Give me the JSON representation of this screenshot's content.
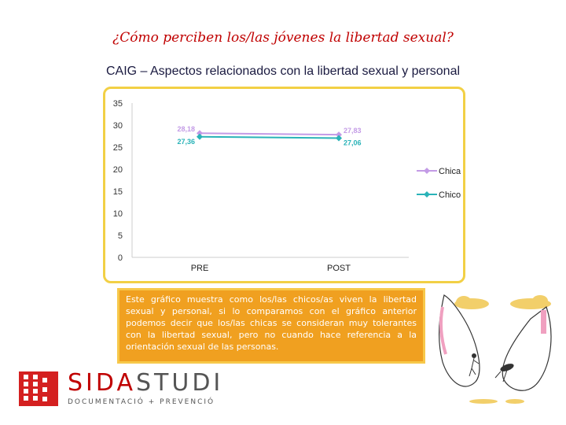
{
  "title": "¿Cómo perciben los/las jóvenes la libertad sexual?",
  "subtitle": "CAIG – Aspectos relacionados con la libertad sexual y personal",
  "description": "Este gráfico muestra como los/las chicos/as viven la libertad sexual y personal, si lo comparamos con el gráfico anterior podemos decir que los/las chicas se consideran muy tolerantes con la libertad sexual, pero no cuando hace referencia a la orientación sexual de las personas.",
  "logo": {
    "brand_part1": "SIDA",
    "brand_part2": "STUDI",
    "tagline": "DOCUMENTACIÓ + PREVENCIÓ"
  },
  "colors": {
    "title": "#c00000",
    "chica": "#c39be6",
    "chico": "#2ab3b8",
    "frame": "#f2d045",
    "desc_bg": "#f0a020"
  },
  "chart_data": {
    "type": "line",
    "categories": [
      "PRE",
      "POST"
    ],
    "series": [
      {
        "name": "Chica",
        "values": [
          28.18,
          27.83
        ],
        "labels": [
          "28,18",
          "27,83"
        ],
        "color": "#c39be6",
        "marker": "diamond"
      },
      {
        "name": "Chico",
        "values": [
          27.36,
          27.06
        ],
        "labels": [
          "27,36",
          "27,06"
        ],
        "color": "#2ab3b8",
        "marker": "diamond"
      }
    ],
    "yticks": [
      "35",
      "30",
      "25",
      "20",
      "15",
      "10",
      "5",
      "0"
    ],
    "ylim": [
      0,
      35
    ],
    "grid": false,
    "legend": "right"
  }
}
